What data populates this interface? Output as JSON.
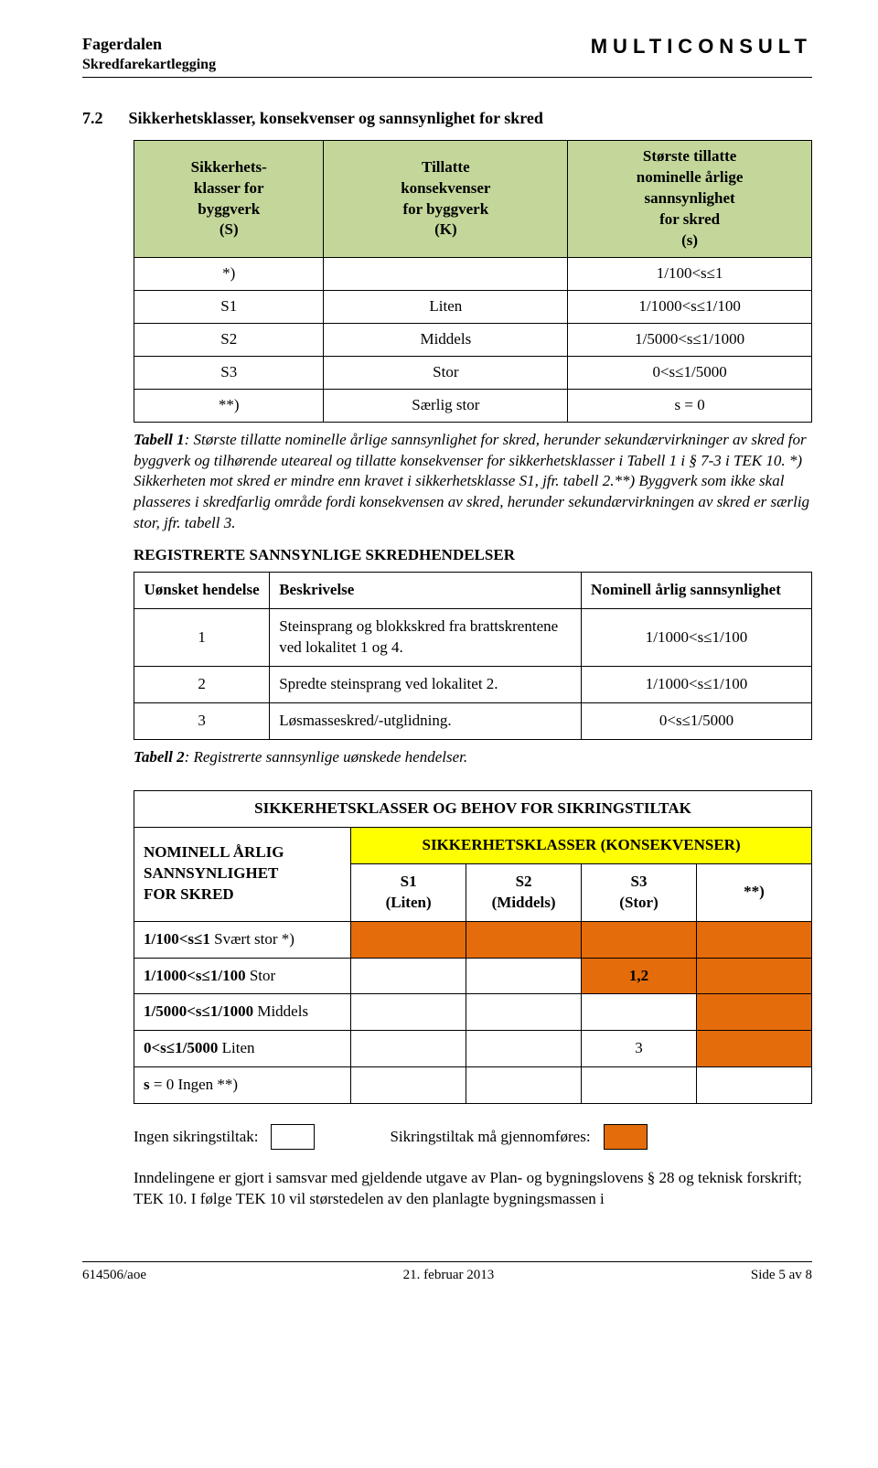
{
  "header": {
    "left_line1": "Fagerdalen",
    "left_line2": "Skredfarekartlegging",
    "right": "MULTICONSULT"
  },
  "section": {
    "number": "7.2",
    "title": "Sikkerhetsklasser, konsekvenser og sannsynlighet for skred"
  },
  "t1": {
    "headers": {
      "a1": "Sikkerhets-",
      "a2": "klasser for",
      "a3": "byggverk",
      "a4": "(S)",
      "b1": "Tillatte",
      "b2": "konsekvenser",
      "b3": "for byggverk",
      "b4": "(K)",
      "c1": "Største tillatte",
      "c2": "nominelle årlige",
      "c3": "sannsynlighet",
      "c4": "for skred",
      "c5": "(s)"
    },
    "rows": [
      {
        "a": "*)",
        "b": "",
        "c": "1/100<s≤1"
      },
      {
        "a": "S1",
        "b": "Liten",
        "c": "1/1000<s≤1/100"
      },
      {
        "a": "S2",
        "b": "Middels",
        "c": "1/5000<s≤1/1000"
      },
      {
        "a": "S3",
        "b": "Stor",
        "c": "0<s≤1/5000"
      },
      {
        "a": "**)",
        "b": "Særlig stor",
        "c": "s = 0"
      }
    ],
    "caption_lead": "Tabell 1",
    "caption_body": ": Største tillatte nominelle årlige sannsynlighet for skred, herunder sekundærvirkninger av skred for byggverk og tilhørende uteareal og tillatte konsekvenser for sikkerhetsklasser i Tabell 1 i § 7-3 i TEK 10. *) Sikkerheten mot skred er mindre enn kravet i sikkerhetsklasse S1, jfr. tabell 2.**) Byggverk som ikke skal plasseres i skredfarlig område fordi konsekvensen av skred, herunder sekundærvirkningen av skred er særlig stor, jfr. tabell 3."
  },
  "reg": {
    "title": "REGISTRERTE SANNSYNLIGE SKREDHENDELSER",
    "headers": {
      "h1": "Uønsket hendelse",
      "h2": "Beskrivelse",
      "h3": "Nominell årlig sannsynlighet"
    },
    "rows": [
      {
        "n": "1",
        "b": "Steinsprang og blokkskred fra brattskrentene ved lokalitet 1 og 4.",
        "s": "1/1000<s≤1/100"
      },
      {
        "n": "2",
        "b": "Spredte steinsprang ved lokalitet 2.",
        "s": "1/1000<s≤1/100"
      },
      {
        "n": "3",
        "b": "Løsmasseskred/-utglidning.",
        "s": "0<s≤1/5000"
      }
    ],
    "caption_lead": "Tabell 2",
    "caption_body": ": Registrerte sannsynlige uønskede hendelser."
  },
  "t3": {
    "title": "SIKKERHETSKLASSER OG BEHOV FOR SIKRINGSTILTAK",
    "left_head_1": "NOMINELL ÅRLIG",
    "left_head_2": "SANNSYNLIGHET",
    "left_head_3": "FOR SKRED",
    "sikker_head": "SIKKERHETSKLASSER (KONSEKVENSER)",
    "cols": {
      "s1a": "S1",
      "s1b": "(Liten)",
      "s2a": "S2",
      "s2b": "(Middels)",
      "s3a": "S3",
      "s3b": "(Stor)",
      "s4": "**)"
    },
    "rows": [
      {
        "label": "1/100<s≤1 Svært stor *)",
        "hits": [
          true,
          true,
          true,
          true
        ],
        "vals": [
          "",
          "",
          "",
          ""
        ]
      },
      {
        "label": "1/1000<s≤1/100 Stor",
        "hits": [
          false,
          false,
          true,
          true
        ],
        "vals": [
          "",
          "",
          "1,2",
          ""
        ]
      },
      {
        "label": "1/5000<s≤1/1000 Middels",
        "hits": [
          false,
          false,
          false,
          true
        ],
        "vals": [
          "",
          "",
          "",
          ""
        ]
      },
      {
        "label": "0<s≤1/5000 Liten",
        "hits": [
          false,
          false,
          false,
          true
        ],
        "vals": [
          "",
          "",
          "3",
          ""
        ]
      },
      {
        "label": "s = 0 Ingen **)",
        "hits": [
          false,
          false,
          false,
          false
        ],
        "vals": [
          "",
          "",
          "",
          ""
        ]
      }
    ]
  },
  "legend": {
    "none": "Ingen sikringstiltak:",
    "need": "Sikringstiltak må gjennomføres:"
  },
  "para": "Inndelingene er gjort i samsvar med gjeldende utgave av Plan- og bygningslovens § 28 og teknisk forskrift; TEK 10. I følge TEK 10 vil størstedelen av den planlagte bygningsmassen i",
  "footer": {
    "left": "614506/aoe",
    "center": "21. februar 2013",
    "right": "Side 5 av 8"
  },
  "colors": {
    "green_header": "#c4d79b",
    "yellow": "#ffff00",
    "orange": "#e46c0a"
  }
}
